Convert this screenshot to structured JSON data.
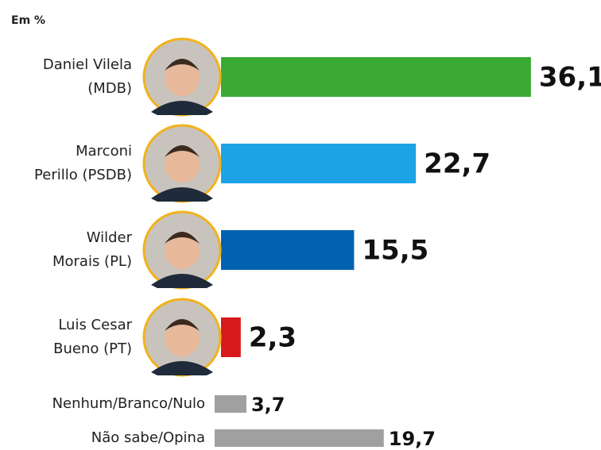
{
  "chart_data": {
    "type": "bar",
    "subtitle": "Em %",
    "categories": [
      "Daniel Vilela\n(MDB)",
      "Marconi\nPerillo (PSDB)",
      "Wilder\nMorais (PL)",
      "Luis Cesar\nBueno (PT)",
      "Nenhum/Branco/Nulo",
      "Não sabe/Opina"
    ],
    "values": [
      36.1,
      22.7,
      15.5,
      2.3,
      3.7,
      19.7
    ],
    "value_labels": [
      "36,1",
      "22,7",
      "15,5",
      "2,3",
      "3,7",
      "19,7"
    ],
    "colors": [
      "#3aaa35",
      "#1ba3e6",
      "#0062b1",
      "#d7191c",
      "#a0a0a0",
      "#a0a0a0"
    ]
  }
}
